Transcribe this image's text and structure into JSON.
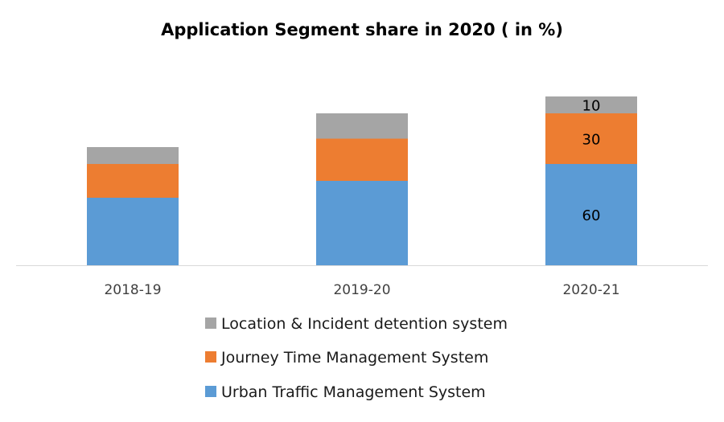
{
  "chart_data": {
    "type": "bar",
    "stacked": true,
    "title": "Application Segment share in 2020 ( in %)",
    "xlabel": "",
    "ylabel": "",
    "ylim": [
      0,
      100
    ],
    "grid": false,
    "legend_position": "bottom",
    "categories": [
      "2018-19",
      "2019-20",
      "2020-21"
    ],
    "series": [
      {
        "name": "Urban Traffic Management System",
        "color": "#5b9bd5",
        "values": [
          40,
          50,
          60
        ],
        "data_labels": [
          null,
          null,
          "60"
        ]
      },
      {
        "name": "Journey Time Management System",
        "color": "#ed7d31",
        "values": [
          20,
          25,
          30
        ],
        "data_labels": [
          null,
          null,
          "30"
        ]
      },
      {
        "name": "Location & Incident detention system",
        "color": "#a5a5a5",
        "values": [
          10,
          15,
          10
        ],
        "data_labels": [
          null,
          null,
          "10"
        ]
      }
    ],
    "legend_order": [
      2,
      1,
      0
    ]
  }
}
